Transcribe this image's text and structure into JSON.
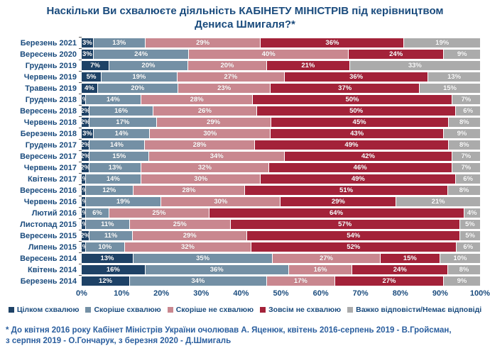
{
  "title": "Наскільки Ви схвалюєте діяльність КАБІНЕТУ МІНІСТРІВ під керівництвом Дениса Шмигаля?*",
  "footnote": "* До квітня 2016 року Кабінет Міністрів України очолював А. Яценюк, квітень 2016-серпень 2019 - В.Гройсман,\nз серпня 2019 - О.Гончарук, з березня 2020 - Д.Шмигаль",
  "colors": {
    "title_text": "#1A4B7D",
    "footnote_text": "#2A5E9E",
    "value_label_text": "#FFFFFF",
    "background": "#FFFFFF"
  },
  "chart_data": {
    "type": "bar",
    "stacked": true,
    "orientation": "horizontal",
    "title": "Наскільки Ви схвалюєте діяльність КАБІНЕТУ МІНІСТРІВ під керівництвом Дениса Шмигаля?*",
    "xlabel": "",
    "ylabel": "",
    "xlim": [
      0,
      100
    ],
    "x_ticks": [
      "0%",
      "10%",
      "20%",
      "30%",
      "40%",
      "50%",
      "60%",
      "70%",
      "80%",
      "90%",
      "100%"
    ],
    "grid": false,
    "legend_position": "bottom",
    "value_suffix": "%",
    "categories": [
      "Березень 2021",
      "Вересень 2020",
      "Грудень 2019",
      "Червень 2019",
      "Травень 2019",
      "Грудень 2018",
      "Вересень 2018",
      "Червень 2018",
      "Березень 2018",
      "Грудень 2017",
      "Вересень 2017",
      "Червень 2017",
      "Квітень 2017",
      "Вересень 2016",
      "Червень 2016",
      "Лютий 2016",
      "Листопад 2015",
      "Вересень 2015",
      "Липень 2015",
      "Вересень 2014",
      "Квітень 2014",
      "Березень 2014"
    ],
    "series": [
      {
        "name": "Цілком схвалюю",
        "color": "#1E4266",
        "values": [
          3,
          3,
          7,
          5,
          4,
          1,
          2,
          2,
          3,
          2,
          2,
          2,
          1,
          1,
          1,
          1,
          1,
          2,
          1,
          13,
          16,
          12
        ]
      },
      {
        "name": "Скоріше схвалюю",
        "color": "#7490A5",
        "values": [
          13,
          24,
          20,
          19,
          20,
          14,
          16,
          17,
          14,
          14,
          15,
          13,
          14,
          12,
          19,
          6,
          11,
          11,
          10,
          35,
          36,
          34
        ]
      },
      {
        "name": "Скоріше не схвалюю",
        "color": "#C9878F",
        "values": [
          29,
          40,
          20,
          27,
          23,
          28,
          26,
          29,
          30,
          28,
          34,
          32,
          30,
          28,
          30,
          25,
          25,
          29,
          32,
          27,
          16,
          17
        ]
      },
      {
        "name": "Зовсім не схвалюю",
        "color": "#A32239",
        "values": [
          36,
          24,
          21,
          36,
          37,
          50,
          50,
          45,
          43,
          49,
          42,
          46,
          49,
          51,
          29,
          64,
          57,
          54,
          52,
          15,
          24,
          27
        ]
      },
      {
        "name": "Важко відповісти/Немає відповіді",
        "color": "#ABABAB",
        "values": [
          19,
          9,
          33,
          13,
          15,
          7,
          6,
          8,
          9,
          8,
          7,
          7,
          6,
          8,
          21,
          4,
          5,
          5,
          6,
          10,
          8,
          9
        ]
      }
    ]
  }
}
